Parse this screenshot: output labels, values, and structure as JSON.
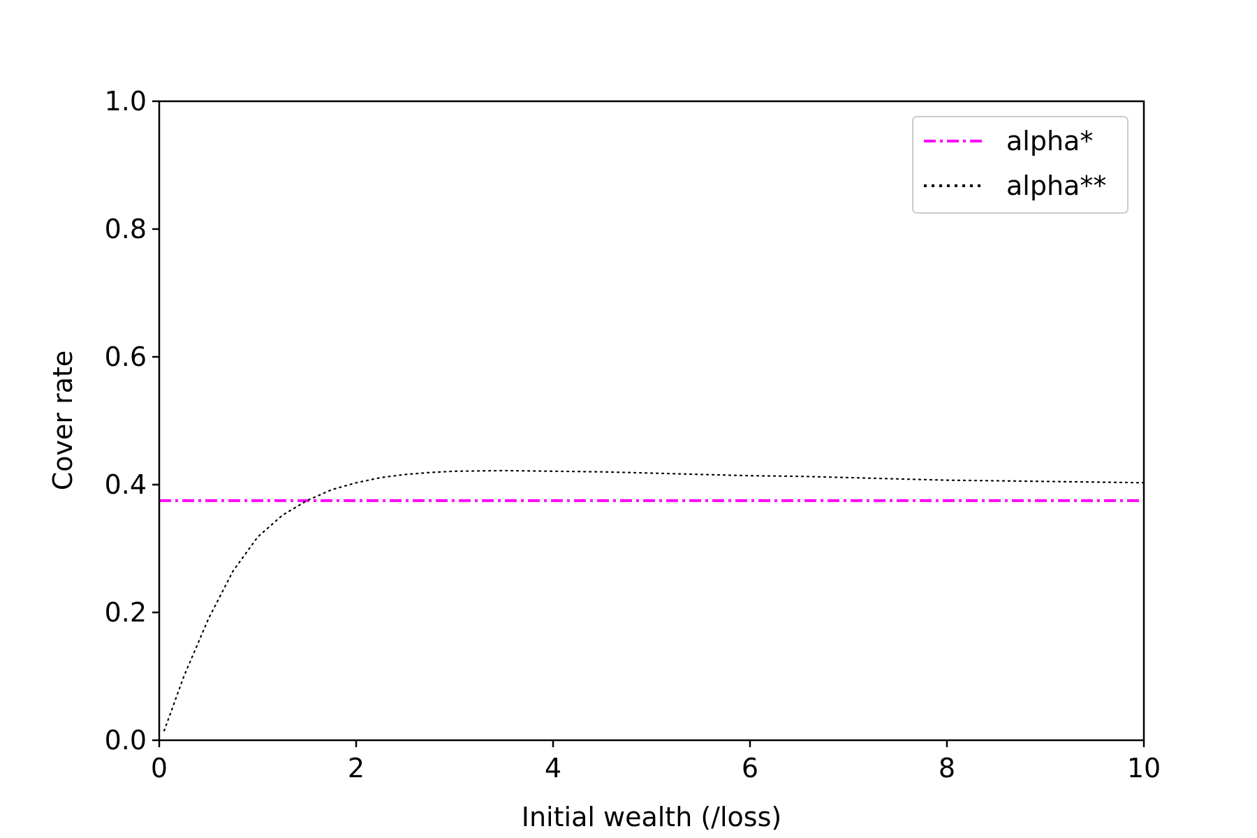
{
  "chart_data": {
    "type": "line",
    "title": "",
    "xlabel": "Initial wealth (/loss)",
    "ylabel": "Cover rate",
    "xlim": [
      0,
      10
    ],
    "ylim": [
      0,
      1
    ],
    "xticks": [
      "0",
      "2",
      "4",
      "6",
      "8",
      "10"
    ],
    "yticks": [
      "0.0",
      "0.2",
      "0.4",
      "0.6",
      "0.8",
      "1.0"
    ],
    "grid": false,
    "legend_position": "top-right",
    "series": [
      {
        "name": "alpha*",
        "style": "dash-dot",
        "color": "#ff00ff",
        "x": [
          0,
          10
        ],
        "y": [
          0.375,
          0.375
        ]
      },
      {
        "name": "alpha**",
        "style": "dotted",
        "color": "#000000",
        "x": [
          0.05,
          0.25,
          0.5,
          0.75,
          1.0,
          1.25,
          1.5,
          1.75,
          2.0,
          2.25,
          2.5,
          2.75,
          3.0,
          3.5,
          4.0,
          4.5,
          5.0,
          5.5,
          6.0,
          6.5,
          7.0,
          7.5,
          8.0,
          8.5,
          9.0,
          9.5,
          10.0
        ],
        "y": [
          0.015,
          0.1,
          0.19,
          0.265,
          0.318,
          0.352,
          0.375,
          0.392,
          0.403,
          0.411,
          0.416,
          0.419,
          0.421,
          0.422,
          0.421,
          0.42,
          0.418,
          0.416,
          0.414,
          0.413,
          0.411,
          0.409,
          0.407,
          0.406,
          0.405,
          0.404,
          0.403
        ]
      }
    ]
  }
}
